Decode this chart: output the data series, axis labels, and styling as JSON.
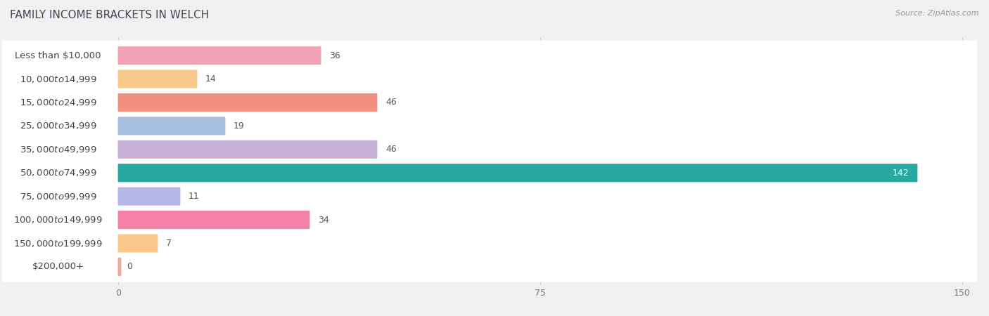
{
  "title": "FAMILY INCOME BRACKETS IN WELCH",
  "source": "Source: ZipAtlas.com",
  "categories": [
    "Less than $10,000",
    "$10,000 to $14,999",
    "$15,000 to $24,999",
    "$25,000 to $34,999",
    "$35,000 to $49,999",
    "$50,000 to $74,999",
    "$75,000 to $99,999",
    "$100,000 to $149,999",
    "$150,000 to $199,999",
    "$200,000+"
  ],
  "values": [
    36,
    14,
    46,
    19,
    46,
    142,
    11,
    34,
    7,
    0
  ],
  "bar_colors": [
    "#f2a0b4",
    "#f9c98a",
    "#f09080",
    "#a8c0e0",
    "#c5b0d8",
    "#28a8a0",
    "#b8b8e8",
    "#f480a8",
    "#f9c98a",
    "#f0a898"
  ],
  "xlim_data": [
    0,
    150
  ],
  "xticks": [
    0,
    75,
    150
  ],
  "bg_color": "#f0f0f0",
  "row_bg_color": "#ffffff",
  "title_fontsize": 11,
  "label_fontsize": 9.5,
  "value_fontsize": 9
}
